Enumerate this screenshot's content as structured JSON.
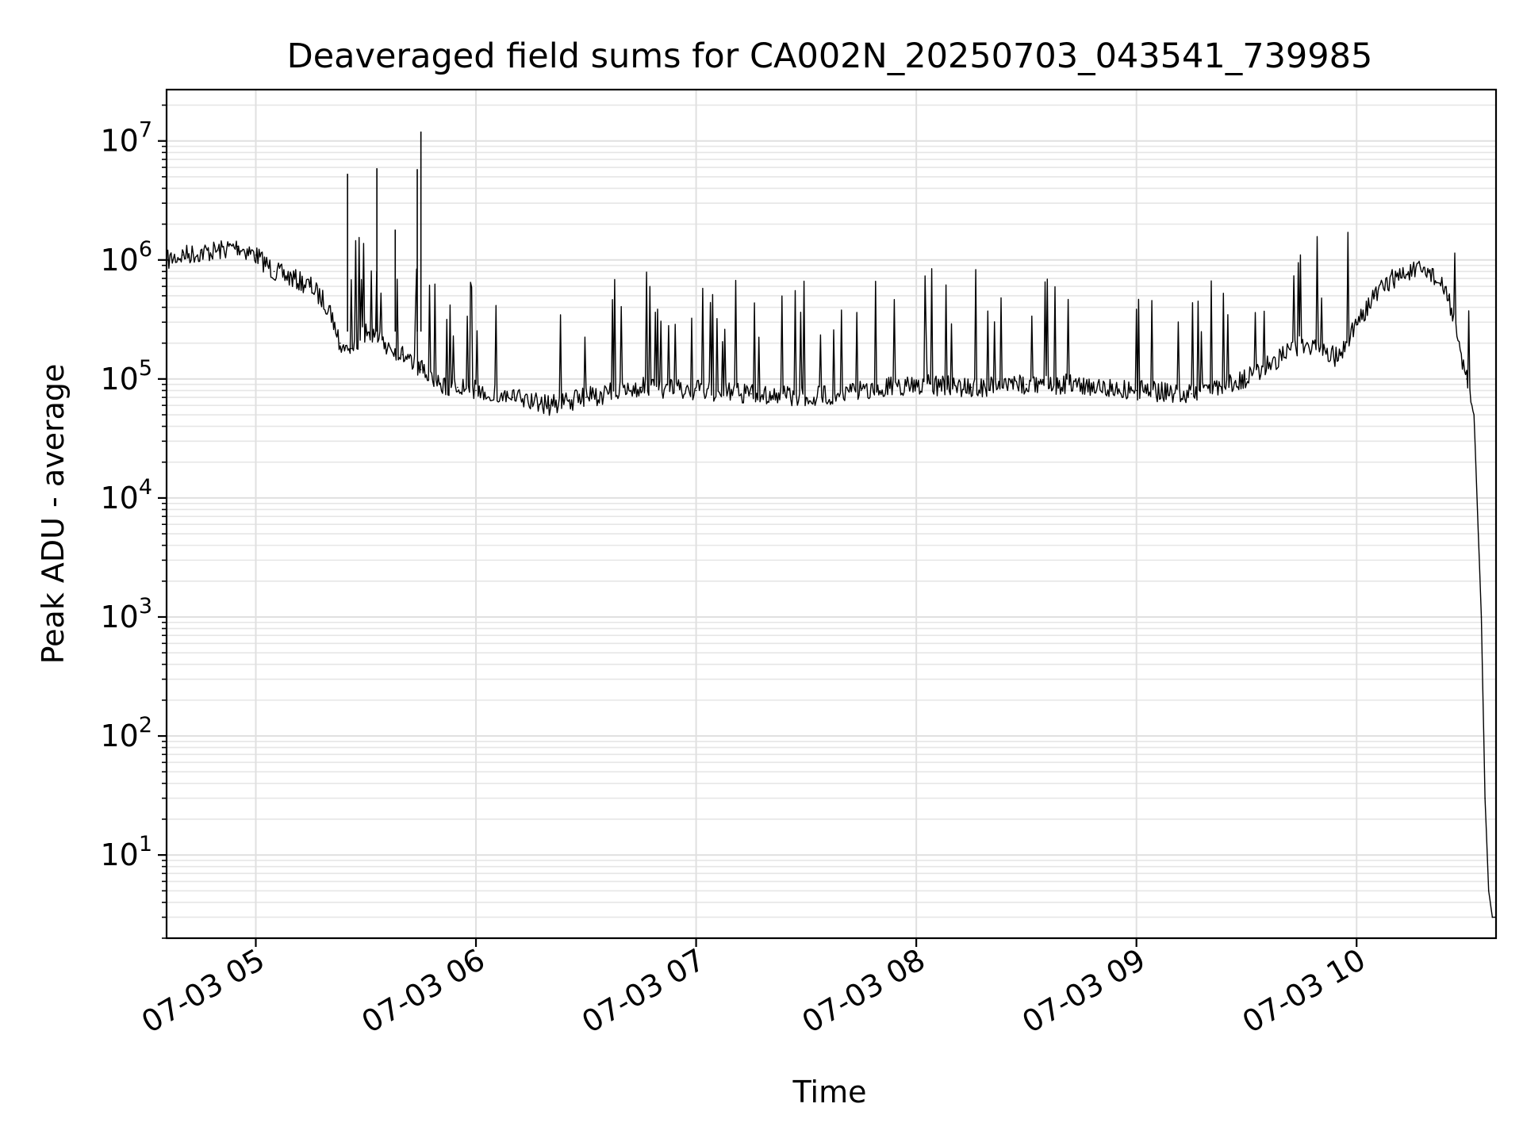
{
  "chart_data": {
    "type": "line",
    "title": "Deaveraged field sums for CA002N_20250703_043541_739985",
    "xlabel": "Time",
    "ylabel": "Peak ADU - average",
    "x_scale": "time",
    "y_scale": "log",
    "xlim": [
      "2025-07-03 04:35:41",
      "2025-07-03 10:38:00"
    ],
    "ylim": [
      2,
      27000000
    ],
    "grid": {
      "major": true,
      "minor": true
    },
    "legend": "none",
    "x_ticks": [
      {
        "value": "2025-07-03 05:00",
        "label": "07-03 05"
      },
      {
        "value": "2025-07-03 06:00",
        "label": "07-03 06"
      },
      {
        "value": "2025-07-03 07:00",
        "label": "07-03 07"
      },
      {
        "value": "2025-07-03 08:00",
        "label": "07-03 08"
      },
      {
        "value": "2025-07-03 09:00",
        "label": "07-03 09"
      },
      {
        "value": "2025-07-03 10:00",
        "label": "07-03 10"
      }
    ],
    "y_ticks": [
      {
        "value": 10,
        "base": "10",
        "exp": "1"
      },
      {
        "value": 100,
        "base": "10",
        "exp": "2"
      },
      {
        "value": 1000,
        "base": "10",
        "exp": "3"
      },
      {
        "value": 10000,
        "base": "10",
        "exp": "4"
      },
      {
        "value": 100000,
        "base": "10",
        "exp": "5"
      },
      {
        "value": 1000000,
        "base": "10",
        "exp": "6"
      },
      {
        "value": 10000000,
        "base": "10",
        "exp": "7"
      }
    ],
    "series": [
      {
        "color": "#000000",
        "x": [
          "2025-07-03 04:36",
          "2025-07-03 04:40",
          "2025-07-03 04:45",
          "2025-07-03 04:50",
          "2025-07-03 04:55",
          "2025-07-03 05:00",
          "2025-07-03 05:05",
          "2025-07-03 05:10",
          "2025-07-03 05:15",
          "2025-07-03 05:20",
          "2025-07-03 05:23",
          "2025-07-03 05:26",
          "2025-07-03 05:30",
          "2025-07-03 05:35",
          "2025-07-03 05:40",
          "2025-07-03 05:45",
          "2025-07-03 05:50",
          "2025-07-03 05:55",
          "2025-07-03 06:00",
          "2025-07-03 06:10",
          "2025-07-03 06:20",
          "2025-07-03 06:30",
          "2025-07-03 06:45",
          "2025-07-03 07:00",
          "2025-07-03 07:15",
          "2025-07-03 07:30",
          "2025-07-03 07:45",
          "2025-07-03 08:00",
          "2025-07-03 08:15",
          "2025-07-03 08:30",
          "2025-07-03 08:45",
          "2025-07-03 09:00",
          "2025-07-03 09:15",
          "2025-07-03 09:30",
          "2025-07-03 09:45",
          "2025-07-03 09:55",
          "2025-07-03 10:00",
          "2025-07-03 10:05",
          "2025-07-03 10:10",
          "2025-07-03 10:15",
          "2025-07-03 10:20",
          "2025-07-03 10:25",
          "2025-07-03 10:30",
          "2025-07-03 10:32",
          "2025-07-03 10:34",
          "2025-07-03 10:35",
          "2025-07-03 10:36",
          "2025-07-03 10:37",
          "2025-07-03 10:38"
        ],
        "values": [
          1000000,
          1100000,
          1150000,
          1200000,
          1300000,
          1100000,
          800000,
          700000,
          600000,
          400000,
          200000,
          180000,
          250000,
          200000,
          160000,
          120000,
          90000,
          85000,
          80000,
          70000,
          60000,
          70000,
          85000,
          80000,
          75000,
          70000,
          80000,
          90000,
          85000,
          90000,
          90000,
          80000,
          75000,
          100000,
          200000,
          150000,
          300000,
          500000,
          700000,
          800000,
          800000,
          500000,
          100000,
          50000,
          1000,
          30,
          5,
          3,
          3
        ],
        "spikes": [
          {
            "x": "2025-07-03 05:25",
            "value": 5300000
          },
          {
            "x": "2025-07-03 05:33",
            "value": 5900000
          },
          {
            "x": "2025-07-03 05:38",
            "value": 1800000
          },
          {
            "x": "2025-07-03 05:44",
            "value": 5800000
          },
          {
            "x": "2025-07-03 05:45",
            "value": 12000000
          }
        ]
      }
    ]
  }
}
